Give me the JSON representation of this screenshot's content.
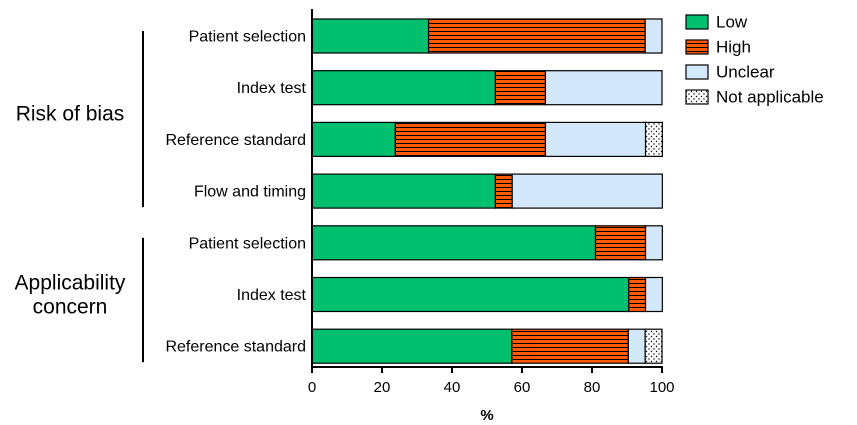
{
  "chart_data": {
    "type": "bar",
    "orientation": "horizontal",
    "stacked": true,
    "xlabel": "%",
    "xlim": [
      0,
      100
    ],
    "xticks": [
      "0",
      "20",
      "40",
      "60",
      "80",
      "100"
    ],
    "groups": [
      {
        "label": "Risk of bias",
        "lines": [
          "Risk of bias"
        ],
        "categories": [
          0,
          1,
          2,
          3
        ]
      },
      {
        "label": "Applicability concern",
        "lines": [
          "Applicability",
          "concern"
        ],
        "categories": [
          4,
          5,
          6
        ]
      }
    ],
    "categories": [
      "Patient selection",
      "Index test",
      "Reference standard",
      "Flow and timing",
      "Patient selection",
      "Index test",
      "Reference standard"
    ],
    "series": [
      {
        "name": "Low",
        "color": "#00c070",
        "pattern": "solid",
        "values": [
          33.3,
          52.4,
          23.8,
          52.4,
          81.0,
          90.5,
          57.1
        ]
      },
      {
        "name": "High",
        "color": "#ff5a00",
        "pattern": "horizontal-lines",
        "values": [
          61.9,
          14.3,
          42.9,
          4.8,
          14.3,
          4.8,
          33.3
        ]
      },
      {
        "name": "Unclear",
        "color": "#d4e8fb",
        "pattern": "solid",
        "values": [
          4.8,
          33.3,
          28.6,
          42.9,
          4.8,
          4.8,
          4.8
        ]
      },
      {
        "name": "Not applicable",
        "color": "#ffffff",
        "pattern": "dots",
        "values": [
          0,
          0,
          4.8,
          0,
          0,
          0,
          4.8
        ]
      }
    ],
    "legend_position": "top-right",
    "grid": false
  }
}
